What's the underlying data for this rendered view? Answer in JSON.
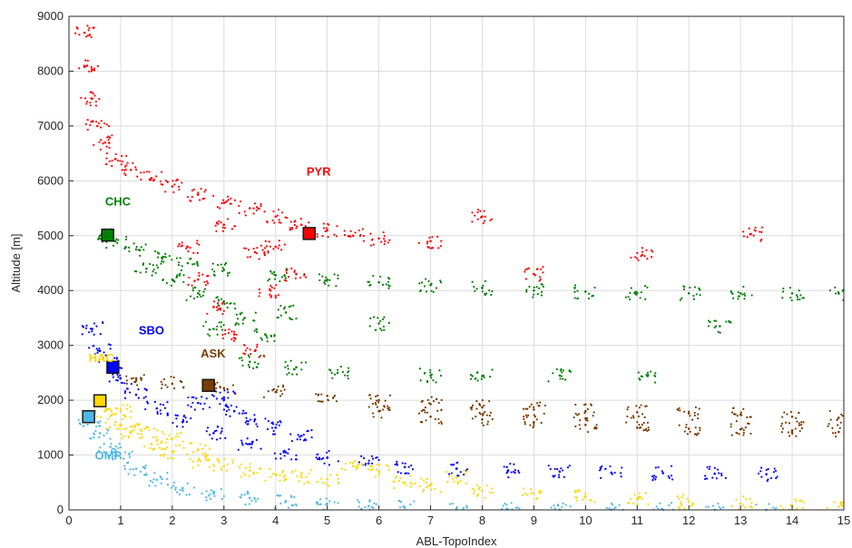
{
  "chart_data": {
    "type": "scatter",
    "title": "",
    "xlabel": "ABL-TopoIndex",
    "ylabel": "Altitude [m]",
    "xlim": [
      0,
      15
    ],
    "ylim": [
      0,
      9000
    ],
    "x_ticks": [
      "0",
      "1",
      "2",
      "3",
      "4",
      "5",
      "6",
      "7",
      "8",
      "9",
      "10",
      "11",
      "12",
      "13",
      "14",
      "15"
    ],
    "y_ticks": [
      "0",
      "1000",
      "2000",
      "3000",
      "4000",
      "5000",
      "6000",
      "7000",
      "8000",
      "9000"
    ],
    "grid": true,
    "series": [
      {
        "name": "PYR",
        "color": "#ff0000",
        "marker": {
          "x": 4.65,
          "y": 5040
        },
        "scatter": [
          [
            0.3,
            8700
          ],
          [
            0.35,
            8100
          ],
          [
            0.45,
            7500
          ],
          [
            0.55,
            7000
          ],
          [
            0.7,
            6700
          ],
          [
            0.9,
            6400
          ],
          [
            1.2,
            6200
          ],
          [
            1.6,
            6050
          ],
          [
            2.0,
            5900
          ],
          [
            2.5,
            5750
          ],
          [
            3.0,
            5600
          ],
          [
            3.5,
            5500
          ],
          [
            4.0,
            5350
          ],
          [
            4.5,
            5200
          ],
          [
            5.0,
            5100
          ],
          [
            5.5,
            5000
          ],
          [
            6.0,
            4950
          ],
          [
            7.0,
            4900
          ],
          [
            8.0,
            5350
          ],
          [
            9.0,
            4300
          ],
          [
            11.1,
            4650
          ],
          [
            13.2,
            5030
          ],
          [
            2.3,
            4800
          ],
          [
            2.5,
            4200
          ],
          [
            2.8,
            3700
          ],
          [
            3.2,
            3200
          ],
          [
            3.6,
            2900
          ],
          [
            3.9,
            4000
          ],
          [
            4.4,
            4300
          ],
          [
            3.0,
            5200
          ],
          [
            3.6,
            4700
          ],
          [
            4.0,
            4800
          ]
        ]
      },
      {
        "name": "CHC",
        "color": "#008000",
        "marker": {
          "x": 0.75,
          "y": 5010
        },
        "scatter": [
          [
            0.6,
            5000
          ],
          [
            0.9,
            4900
          ],
          [
            1.3,
            4750
          ],
          [
            1.8,
            4600
          ],
          [
            2.3,
            4500
          ],
          [
            3.0,
            4380
          ],
          [
            4.0,
            4280
          ],
          [
            5.0,
            4200
          ],
          [
            6.0,
            4150
          ],
          [
            7.0,
            4100
          ],
          [
            8.0,
            4050
          ],
          [
            9.0,
            4000
          ],
          [
            10.0,
            3980
          ],
          [
            11.0,
            3960
          ],
          [
            12.0,
            3950
          ],
          [
            13.0,
            3950
          ],
          [
            14.0,
            3950
          ],
          [
            14.9,
            3950
          ],
          [
            1.5,
            4400
          ],
          [
            2.0,
            4200
          ],
          [
            2.5,
            3950
          ],
          [
            3.0,
            3800
          ],
          [
            3.4,
            3500
          ],
          [
            3.8,
            3200
          ],
          [
            4.2,
            3600
          ],
          [
            2.8,
            3300
          ],
          [
            3.5,
            2700
          ],
          [
            4.4,
            2600
          ],
          [
            5.2,
            2500
          ],
          [
            6.0,
            3400
          ],
          [
            7.0,
            2450
          ],
          [
            8.0,
            2440
          ],
          [
            9.5,
            2450
          ],
          [
            11.2,
            2440
          ],
          [
            12.6,
            3350
          ]
        ]
      },
      {
        "name": "ASK",
        "color": "#7a3d00",
        "marker": {
          "x": 2.7,
          "y": 2270
        },
        "scatter": [
          [
            1.3,
            2400
          ],
          [
            2.0,
            2300
          ],
          [
            3.0,
            2220
          ],
          [
            4.0,
            2150
          ],
          [
            5.0,
            2080
          ],
          [
            6.0,
            2000
          ],
          [
            7.0,
            1930
          ],
          [
            8.0,
            1870
          ],
          [
            9.0,
            1830
          ],
          [
            10.0,
            1800
          ],
          [
            11.0,
            1780
          ],
          [
            12.0,
            1760
          ],
          [
            13.0,
            1740
          ],
          [
            14.0,
            1700
          ],
          [
            14.9,
            1680
          ],
          [
            6.0,
            1800
          ],
          [
            7.0,
            1700
          ],
          [
            8.0,
            1650
          ],
          [
            9.0,
            1600
          ],
          [
            10.0,
            1550
          ],
          [
            11.0,
            1500
          ],
          [
            12.0,
            1480
          ],
          [
            13.0,
            1470
          ],
          [
            14.0,
            1450
          ],
          [
            14.9,
            1420
          ]
        ]
      },
      {
        "name": "SBO",
        "color": "#0000ff",
        "marker": {
          "x": 0.85,
          "y": 2600
        },
        "scatter": [
          [
            0.45,
            3300
          ],
          [
            0.6,
            2900
          ],
          [
            0.8,
            2700
          ],
          [
            1.0,
            2400
          ],
          [
            1.3,
            2100
          ],
          [
            1.7,
            1850
          ],
          [
            2.2,
            1600
          ],
          [
            2.8,
            1400
          ],
          [
            3.5,
            1200
          ],
          [
            4.2,
            1050
          ],
          [
            5.0,
            950
          ],
          [
            5.8,
            850
          ],
          [
            6.5,
            780
          ],
          [
            7.5,
            750
          ],
          [
            8.5,
            720
          ],
          [
            9.5,
            700
          ],
          [
            10.5,
            680
          ],
          [
            11.5,
            670
          ],
          [
            12.5,
            660
          ],
          [
            13.5,
            650
          ],
          [
            3.2,
            1800
          ],
          [
            3.6,
            1650
          ],
          [
            4.0,
            1500
          ],
          [
            4.5,
            1350
          ],
          [
            2.5,
            1950
          ],
          [
            3.0,
            2050
          ]
        ]
      },
      {
        "name": "HAC",
        "color": "#ffd700",
        "marker": {
          "x": 0.6,
          "y": 1990
        },
        "scatter": [
          [
            0.7,
            1800
          ],
          [
            0.9,
            1600
          ],
          [
            1.2,
            1400
          ],
          [
            1.6,
            1200
          ],
          [
            2.0,
            1050
          ],
          [
            2.5,
            900
          ],
          [
            3.0,
            800
          ],
          [
            3.5,
            720
          ],
          [
            4.0,
            650
          ],
          [
            4.5,
            600
          ],
          [
            5.0,
            560
          ],
          [
            5.5,
            800
          ],
          [
            6.0,
            700
          ],
          [
            6.5,
            500
          ],
          [
            7.0,
            450
          ],
          [
            7.5,
            600
          ],
          [
            8.0,
            350
          ],
          [
            9.0,
            300
          ],
          [
            10.0,
            250
          ],
          [
            11.0,
            200
          ],
          [
            12.0,
            150
          ],
          [
            13.0,
            120
          ],
          [
            14.0,
            80
          ],
          [
            14.9,
            60
          ],
          [
            1.0,
            1800
          ],
          [
            1.5,
            1500
          ],
          [
            2.0,
            1300
          ],
          [
            2.5,
            1100
          ]
        ]
      },
      {
        "name": "OMP",
        "color": "#4db8e6",
        "marker": {
          "x": 0.38,
          "y": 1700
        },
        "scatter": [
          [
            0.4,
            1650
          ],
          [
            0.6,
            1400
          ],
          [
            0.8,
            1150
          ],
          [
            1.0,
            950
          ],
          [
            1.3,
            750
          ],
          [
            1.7,
            550
          ],
          [
            2.2,
            400
          ],
          [
            2.8,
            300
          ],
          [
            3.5,
            220
          ],
          [
            4.2,
            160
          ],
          [
            5.0,
            110
          ],
          [
            5.8,
            70
          ],
          [
            6.5,
            40
          ],
          [
            7.5,
            20
          ],
          [
            8.5,
            10
          ],
          [
            9.5,
            5
          ],
          [
            10.5,
            3
          ],
          [
            11.5,
            2
          ],
          [
            12.5,
            2
          ],
          [
            13.5,
            1
          ]
        ]
      }
    ],
    "labels": [
      {
        "text": "PYR",
        "color": "#ff0000",
        "x": 4.6,
        "y": 6100
      },
      {
        "text": "CHC",
        "color": "#008000",
        "x": 0.7,
        "y": 5550
      },
      {
        "text": "SBO",
        "color": "#0000ff",
        "x": 1.35,
        "y": 3200
      },
      {
        "text": "ASK",
        "color": "#7a3d00",
        "x": 2.55,
        "y": 2780
      },
      {
        "text": "HAC",
        "color": "#ffd700",
        "x": 0.38,
        "y": 2700
      },
      {
        "text": "OMP",
        "color": "#4db8e6",
        "x": 0.5,
        "y": 920
      }
    ]
  }
}
